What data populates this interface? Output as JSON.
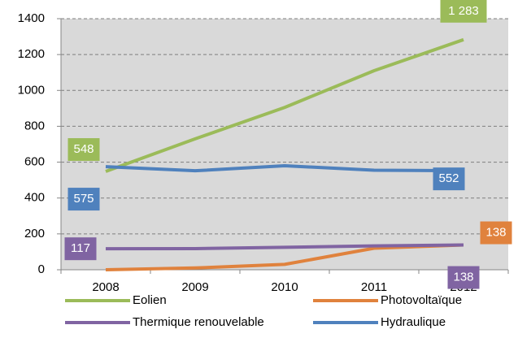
{
  "chart_data": {
    "type": "line",
    "categories": [
      "2008",
      "2009",
      "2010",
      "2011",
      "2012"
    ],
    "series": [
      {
        "name": "Eolien",
        "color": "#9bbb59",
        "values": [
          548,
          730,
          905,
          1110,
          1283
        ],
        "value_labels": [
          "548",
          null,
          null,
          null,
          "1 283"
        ]
      },
      {
        "name": "Photovoltaïque",
        "color": "#e0823d",
        "values": [
          0,
          10,
          30,
          120,
          138
        ],
        "value_labels": [
          null,
          null,
          null,
          null,
          "138"
        ]
      },
      {
        "name": "Thermique renouvelable",
        "color": "#8064a2",
        "values": [
          117,
          118,
          125,
          133,
          138
        ],
        "value_labels": [
          "117",
          null,
          null,
          null,
          "138"
        ]
      },
      {
        "name": "Hydraulique",
        "color": "#4f81bd",
        "values": [
          575,
          552,
          580,
          555,
          552
        ],
        "value_labels": [
          "575",
          null,
          null,
          null,
          "552"
        ]
      }
    ],
    "ylim": [
      0,
      1400
    ],
    "yticks": [
      0,
      200,
      400,
      600,
      800,
      1000,
      1200,
      1400
    ],
    "grid": true
  }
}
